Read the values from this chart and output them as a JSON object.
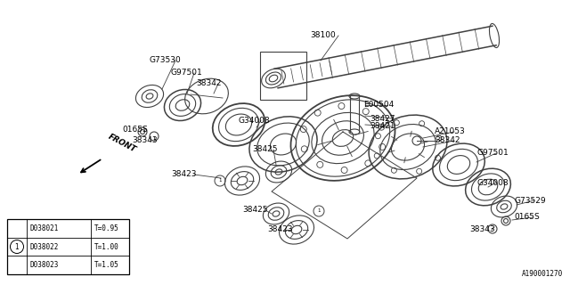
{
  "background_color": "#ffffff",
  "line_color": "#404040",
  "text_color": "#000000",
  "fig_width": 6.4,
  "fig_height": 3.2,
  "dpi": 100,
  "diagram_id": "A190001270",
  "front_label": "FRONT",
  "table_rows": [
    {
      "code": "D038021",
      "t": "T=0.95",
      "circled": false
    },
    {
      "code": "D038022",
      "t": "T=1.00",
      "circled": true
    },
    {
      "code": "D038023",
      "t": "T=1.05",
      "circled": false
    }
  ]
}
